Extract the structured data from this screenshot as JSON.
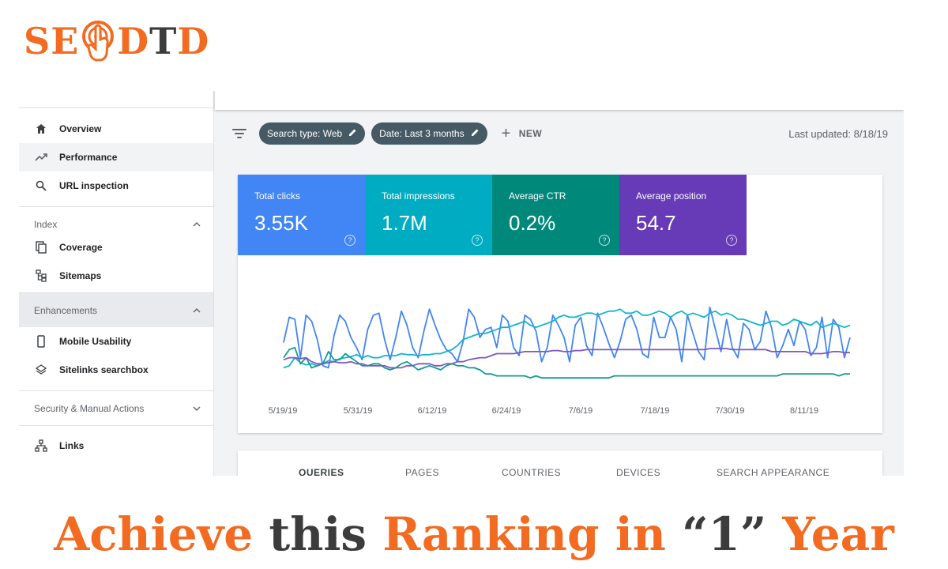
{
  "logo": {
    "left": "SE",
    "right_orange": "D",
    "right_dark": "T",
    "right_orange2": "D",
    "icon": "touch-target-icon"
  },
  "sidebar": {
    "items": [
      {
        "label": "Overview",
        "icon": "home-icon"
      },
      {
        "label": "Performance",
        "icon": "trending-up-icon",
        "active": true
      },
      {
        "label": "URL inspection",
        "icon": "search-icon"
      }
    ],
    "sections": [
      {
        "label": "Index",
        "expanded": true,
        "items": [
          {
            "label": "Coverage",
            "icon": "copy-icon"
          },
          {
            "label": "Sitemaps",
            "icon": "sitemap-icon"
          }
        ]
      },
      {
        "label": "Enhancements",
        "expanded": true,
        "items": [
          {
            "label": "Mobile Usability",
            "icon": "smartphone-icon"
          },
          {
            "label": "Sitelinks searchbox",
            "icon": "layers-icon"
          }
        ]
      },
      {
        "label": "Security & Manual Actions",
        "expanded": false,
        "items": []
      }
    ],
    "links": {
      "label": "Links",
      "icon": "links-icon"
    }
  },
  "filters": {
    "chip1": "Search type: Web",
    "chip2": "Date: Last 3 months",
    "new_label": "NEW",
    "last_updated": "Last updated: 8/18/19"
  },
  "metrics": [
    {
      "label": "Total clicks",
      "value": "3.55K",
      "color": "#4285f4"
    },
    {
      "label": "Total impressions",
      "value": "1.7M",
      "color": "#00acc1"
    },
    {
      "label": "Average CTR",
      "value": "0.2%",
      "color": "#00897b"
    },
    {
      "label": "Average position",
      "value": "54.7",
      "color": "#673ab7"
    }
  ],
  "tabs": [
    "QUERIES",
    "PAGES",
    "COUNTRIES",
    "DEVICES",
    "SEARCH APPEARANCE"
  ],
  "headline": {
    "part1": "Achieve",
    "part2": "this",
    "part3": "Ranking in",
    "part4": "“1”",
    "part5": "Year"
  },
  "chart_data": {
    "type": "line",
    "xlabel": "",
    "ylabel": "",
    "x_ticks": [
      "5/19/19",
      "5/31/19",
      "6/12/19",
      "6/24/19",
      "7/6/19",
      "7/18/19",
      "7/30/19",
      "8/11/19"
    ],
    "grid": false,
    "series": [
      {
        "color": "#4285f4",
        "values": [
          45,
          70,
          68,
          30,
          72,
          66,
          48,
          22,
          20,
          52,
          72,
          66,
          50,
          40,
          28,
          58,
          72,
          74,
          48,
          28,
          50,
          76,
          62,
          40,
          30,
          56,
          78,
          62,
          48,
          38,
          34,
          26,
          46,
          78,
          70,
          50,
          58,
          60,
          40,
          72,
          66,
          40,
          32,
          72,
          68,
          56,
          26,
          40,
          72,
          62,
          50,
          26,
          62,
          70,
          42,
          32,
          74,
          60,
          44,
          30,
          46,
          68,
          72,
          58,
          34,
          30,
          70,
          50,
          50,
          70,
          58,
          26,
          72,
          54,
          36,
          28,
          80,
          58,
          36,
          68,
          40,
          30,
          64,
          58,
          38,
          46,
          76,
          60,
          30,
          42,
          58,
          42,
          66,
          58,
          32,
          40,
          70,
          30,
          68,
          60,
          30,
          50
        ]
      },
      {
        "color": "#12b5cb",
        "values": [
          20,
          22,
          30,
          25,
          23,
          24,
          22,
          24,
          27,
          26,
          29,
          30,
          31,
          33,
          30,
          32,
          30,
          30,
          32,
          32,
          32,
          34,
          33,
          33,
          32,
          33,
          33,
          34,
          34,
          36,
          38,
          42,
          48,
          50,
          52,
          54,
          54,
          56,
          58,
          60,
          60,
          62,
          64,
          66,
          62,
          60,
          62,
          64,
          66,
          70,
          72,
          70,
          70,
          72,
          74,
          74,
          72,
          74,
          76,
          76,
          78,
          74,
          74,
          76,
          72,
          72,
          74,
          76,
          74,
          70,
          74,
          76,
          72,
          74,
          72,
          70,
          74,
          76,
          72,
          74,
          72,
          68,
          68,
          66,
          64,
          62,
          64,
          66,
          66,
          62,
          64,
          68,
          66,
          64,
          62,
          66,
          60,
          62,
          64,
          62,
          60,
          62
        ]
      },
      {
        "color": "#129d8d",
        "values": [
          30,
          38,
          40,
          24,
          30,
          20,
          22,
          24,
          36,
          28,
          28,
          34,
          30,
          26,
          22,
          22,
          24,
          24,
          20,
          18,
          20,
          24,
          26,
          22,
          18,
          20,
          22,
          20,
          18,
          22,
          24,
          22,
          22,
          20,
          20,
          18,
          14,
          14,
          12,
          12,
          12,
          12,
          12,
          12,
          10,
          12,
          10,
          10,
          10,
          10,
          10,
          10,
          10,
          10,
          10,
          10,
          10,
          10,
          10,
          12,
          12,
          12,
          12,
          12,
          12,
          12,
          12,
          12,
          12,
          12,
          12,
          12,
          12,
          12,
          12,
          12,
          12,
          12,
          12,
          12,
          12,
          12,
          12,
          12,
          12,
          12,
          12,
          12,
          12,
          14,
          14,
          14,
          14,
          14,
          14,
          14,
          14,
          14,
          14,
          12,
          14,
          14
        ]
      },
      {
        "color": "#7e57c2",
        "values": [
          28,
          30,
          30,
          29,
          30,
          26,
          24,
          24,
          25,
          26,
          25,
          25,
          26,
          24,
          24,
          22,
          22,
          22,
          22,
          20,
          20,
          20,
          22,
          22,
          24,
          24,
          24,
          22,
          22,
          24,
          24,
          26,
          26,
          28,
          29,
          30,
          30,
          32,
          34,
          34,
          34,
          34,
          35,
          36,
          36,
          36,
          36,
          36,
          37,
          37,
          36,
          36,
          37,
          37,
          38,
          38,
          38,
          38,
          38,
          38,
          38,
          38,
          38,
          38,
          38,
          38,
          38,
          38,
          38,
          38,
          38,
          38,
          38,
          38,
          38,
          38,
          39,
          39,
          39,
          39,
          38,
          38,
          38,
          38,
          38,
          38,
          38,
          36,
          36,
          36,
          36,
          36,
          36,
          36,
          34,
          34,
          34,
          35,
          36,
          36,
          35,
          35
        ]
      }
    ]
  }
}
